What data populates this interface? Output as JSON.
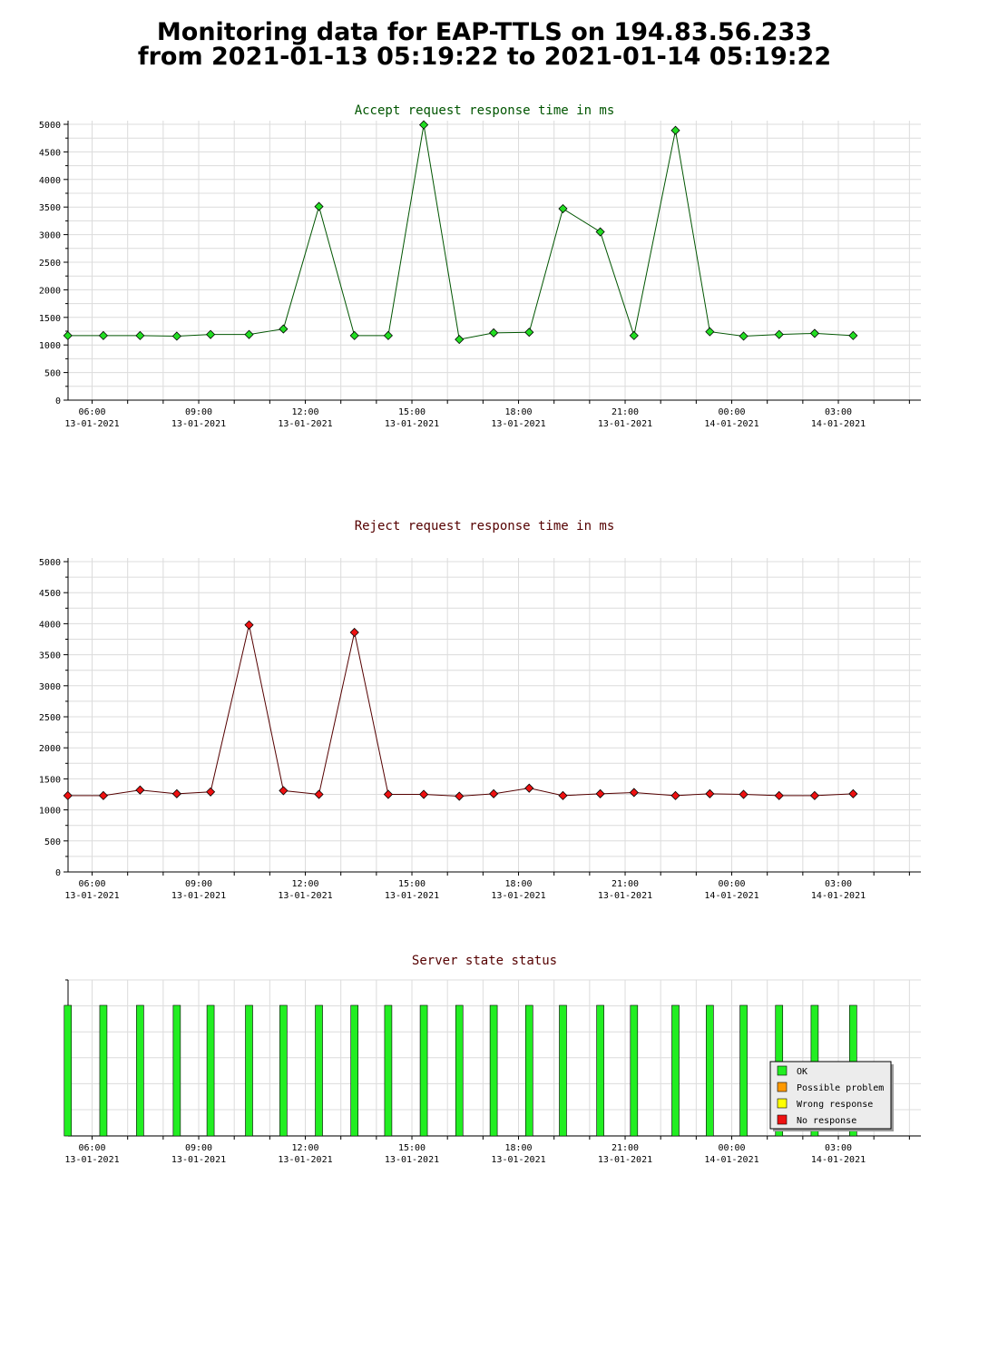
{
  "title": {
    "line1": "Monitoring data for EAP-TTLS on 194.83.56.233",
    "line2": "from 2021-01-13 05:19:22 to 2021-01-14 05:19:22"
  },
  "x_axis": {
    "start_time": "2021-01-13 05:19:22",
    "end_time": "2021-01-14 05:19:22",
    "ticks": [
      {
        "time": "06:00",
        "date": "13-01-2021"
      },
      {
        "time": "09:00",
        "date": "13-01-2021"
      },
      {
        "time": "12:00",
        "date": "13-01-2021"
      },
      {
        "time": "15:00",
        "date": "13-01-2021"
      },
      {
        "time": "18:00",
        "date": "13-01-2021"
      },
      {
        "time": "21:00",
        "date": "13-01-2021"
      },
      {
        "time": "00:00",
        "date": "14-01-2021"
      },
      {
        "time": "03:00",
        "date": "14-01-2021"
      }
    ]
  },
  "chart_data": [
    {
      "type": "line",
      "title": "Accept request response time in ms",
      "title_color": "#005500",
      "line_color": "#005500",
      "marker_color": "#22dd22",
      "ylim": [
        0,
        5000
      ],
      "yticks": [
        0,
        500,
        1000,
        1500,
        2000,
        2500,
        3000,
        3500,
        4000,
        4500,
        5000
      ],
      "grid": true,
      "x": [
        "2021-01-13 05:19",
        "2021-01-13 06:19",
        "2021-01-13 07:21",
        "2021-01-13 08:23",
        "2021-01-13 09:20",
        "2021-01-13 10:25",
        "2021-01-13 11:23",
        "2021-01-13 12:23",
        "2021-01-13 13:23",
        "2021-01-13 14:20",
        "2021-01-13 15:20",
        "2021-01-13 16:20",
        "2021-01-13 17:18",
        "2021-01-13 18:18",
        "2021-01-13 19:15",
        "2021-01-13 20:18",
        "2021-01-13 21:15",
        "2021-01-13 22:25",
        "2021-01-13 23:23",
        "2021-01-14 00:20",
        "2021-01-14 01:20",
        "2021-01-14 02:20",
        "2021-01-14 03:25"
      ],
      "values": [
        1170,
        1170,
        1170,
        1160,
        1190,
        1190,
        1290,
        3510,
        1170,
        1170,
        4990,
        1100,
        1220,
        1230,
        3470,
        3050,
        1170,
        4890,
        1240,
        1160,
        1190,
        1210,
        1170
      ]
    },
    {
      "type": "line",
      "title": "Reject request response time in ms",
      "title_color": "#550000",
      "line_color": "#550000",
      "marker_color": "#ee1111",
      "ylim": [
        0,
        5000
      ],
      "yticks": [
        0,
        500,
        1000,
        1500,
        2000,
        2500,
        3000,
        3500,
        4000,
        4500,
        5000
      ],
      "grid": true,
      "x": [
        "2021-01-13 05:19",
        "2021-01-13 06:19",
        "2021-01-13 07:21",
        "2021-01-13 08:23",
        "2021-01-13 09:20",
        "2021-01-13 10:25",
        "2021-01-13 11:23",
        "2021-01-13 12:23",
        "2021-01-13 13:23",
        "2021-01-13 14:20",
        "2021-01-13 15:20",
        "2021-01-13 16:20",
        "2021-01-13 17:18",
        "2021-01-13 18:18",
        "2021-01-13 19:15",
        "2021-01-13 20:18",
        "2021-01-13 21:15",
        "2021-01-13 22:25",
        "2021-01-13 23:23",
        "2021-01-14 00:20",
        "2021-01-14 01:20",
        "2021-01-14 02:20",
        "2021-01-14 03:25"
      ],
      "values": [
        1230,
        1230,
        1320,
        1260,
        1290,
        3980,
        1310,
        1250,
        3860,
        1250,
        1250,
        1220,
        1260,
        1350,
        1230,
        1260,
        1280,
        1230,
        1260,
        1250,
        1230,
        1230,
        1260
      ]
    },
    {
      "type": "bar",
      "title": "Server state status",
      "title_color": "#550000",
      "grid": true,
      "x": [
        "2021-01-13 05:19",
        "2021-01-13 06:19",
        "2021-01-13 07:21",
        "2021-01-13 08:23",
        "2021-01-13 09:20",
        "2021-01-13 10:25",
        "2021-01-13 11:23",
        "2021-01-13 12:23",
        "2021-01-13 13:23",
        "2021-01-13 14:20",
        "2021-01-13 15:20",
        "2021-01-13 16:20",
        "2021-01-13 17:18",
        "2021-01-13 18:18",
        "2021-01-13 19:15",
        "2021-01-13 20:18",
        "2021-01-13 21:15",
        "2021-01-13 22:25",
        "2021-01-13 23:23",
        "2021-01-14 00:20",
        "2021-01-14 01:20",
        "2021-01-14 02:20",
        "2021-01-14 03:25"
      ],
      "status": [
        "OK",
        "OK",
        "OK",
        "OK",
        "OK",
        "OK",
        "OK",
        "OK",
        "OK",
        "OK",
        "OK",
        "OK",
        "OK",
        "OK",
        "OK",
        "OK",
        "OK",
        "OK",
        "OK",
        "OK",
        "OK",
        "OK",
        "OK"
      ],
      "legend_position": "bottom-right",
      "legend": [
        {
          "label": "OK",
          "color": "#22ee22"
        },
        {
          "label": "Possible problem",
          "color": "#ff9900"
        },
        {
          "label": "Wrong response",
          "color": "#ffff00"
        },
        {
          "label": "No response",
          "color": "#ee1111"
        }
      ]
    }
  ]
}
